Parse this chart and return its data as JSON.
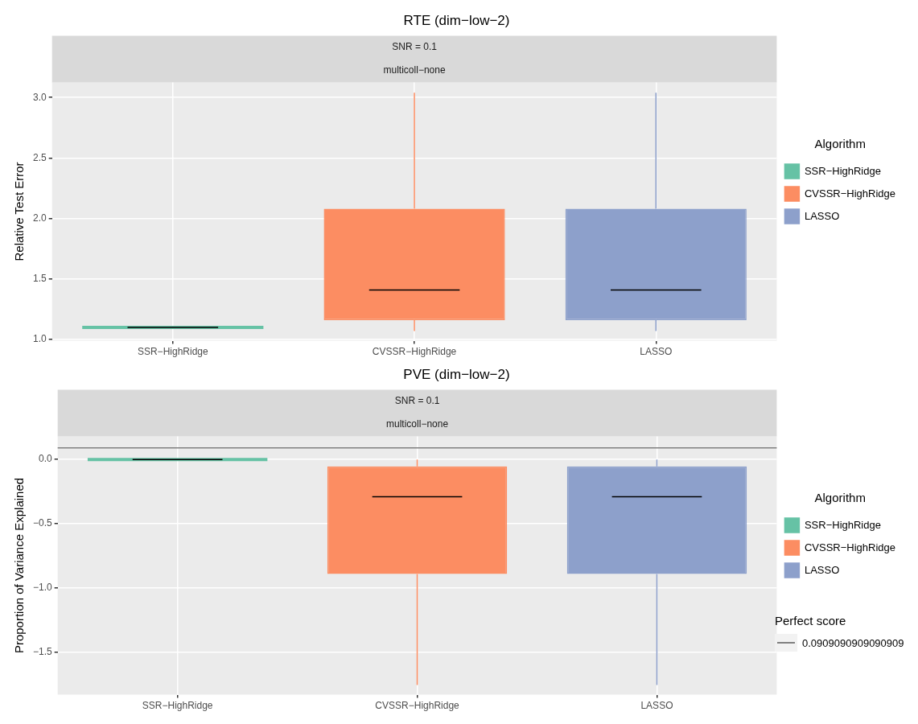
{
  "chart_data": [
    {
      "type": "box",
      "title": "RTE (dim−low−2)",
      "subtitle": "SNR = 0.1",
      "annotations": [
        "multicoll−none"
      ],
      "ylabel": "Relative Test Error",
      "legend_title": "Algorithm",
      "legend": "right",
      "grid": true,
      "categories": [
        "SSR−HighRidge",
        "CVSSR−HighRidge",
        "LASSO"
      ],
      "ylim": [
        0.99,
        3.125
      ],
      "yticks": [
        {
          "value": 1,
          "label": "1.0"
        },
        {
          "value": 1.5,
          "label": "1.5"
        },
        {
          "value": 2,
          "label": "2.0"
        },
        {
          "value": 2.5,
          "label": "2.5"
        },
        {
          "value": 3,
          "label": "3.0"
        }
      ],
      "series": [
        {
          "name": "SSR−HighRidge",
          "color": "#66c2a5",
          "boxes": [
            {
              "low": 1.1,
              "q1": 1.1,
              "median": 1.1,
              "q3": 1.1,
              "high": 1.1
            },
            null,
            null
          ]
        },
        {
          "name": "CVSSR−HighRidge",
          "color": "#fc8d62",
          "boxes": [
            null,
            {
              "low": 1.07,
              "q1": 1.16,
              "median": 1.41,
              "q3": 2.08,
              "high": 3.04
            },
            null
          ]
        },
        {
          "name": "LASSO",
          "color": "#8da0cb",
          "boxes": [
            null,
            null,
            {
              "low": 1.07,
              "q1": 1.16,
              "median": 1.41,
              "q3": 2.08,
              "high": 3.04
            }
          ]
        }
      ]
    },
    {
      "type": "box",
      "title": "PVE (dim−low−2)",
      "subtitle": "SNR = 0.1",
      "annotations": [
        "multicoll−none",
        "Perfect score"
      ],
      "ylabel": "Proportion of Variance Explained",
      "legend_title": "Algorithm",
      "legend": "right",
      "grid": true,
      "categories": [
        "SSR−HighRidge",
        "CVSSR−HighRidge",
        "LASSO"
      ],
      "ylim": [
        -1.83,
        0.18
      ],
      "yticks": [
        {
          "value": -1.5,
          "label": "−1.5"
        },
        {
          "value": -1,
          "label": "−1.0"
        },
        {
          "value": -0.5,
          "label": "−0.5"
        },
        {
          "value": 0,
          "label": "0.0"
        }
      ],
      "ref_lines": [
        {
          "axis": "y",
          "value": 0.0909090909090909,
          "label": "0.0909090909090909",
          "color": "#808080"
        }
      ],
      "series": [
        {
          "name": "SSR−HighRidge",
          "color": "#66c2a5",
          "boxes": [
            {
              "low": 0,
              "q1": 0,
              "median": 0,
              "q3": 0,
              "high": 0
            },
            null,
            null
          ]
        },
        {
          "name": "CVSSR−HighRidge",
          "color": "#fc8d62",
          "boxes": [
            null,
            {
              "low": -1.755,
              "q1": -0.89,
              "median": -0.29,
              "q3": -0.053,
              "high": 0
            },
            null
          ]
        },
        {
          "name": "LASSO",
          "color": "#8da0cb",
          "boxes": [
            null,
            null,
            {
              "low": -1.755,
              "q1": -0.89,
              "median": -0.29,
              "q3": -0.053,
              "high": 0
            }
          ]
        }
      ]
    }
  ]
}
